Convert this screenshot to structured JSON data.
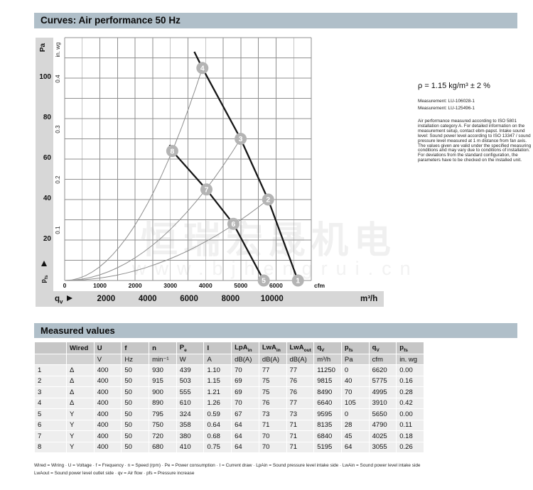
{
  "curves_section": {
    "title": "Curves: Air performance 50 Hz"
  },
  "side_panel": {
    "density": "ρ = 1.15 kg/m³ ± 2 %",
    "measurements": [
      "Measurement: LU-106028-1",
      "Measurement: LU-125496-1"
    ],
    "note": "Air performance measured according to ISO 5801 installation category A. For detailed information on the measurement setup, contact ebm-papst. Intake sound level: Sound power level according to ISO 13347 / sound pressure level measured at 1 m distance from fan axis. The values given are valid under the specified measuring conditions and may vary due to conditions of installation. For deviations from the standard configuration, the parameters have to be checked on the installed unit."
  },
  "watermark": {
    "line1": "恒瑞宏晟机电",
    "line2": "www.bjhengrui.cn"
  },
  "chart_data": {
    "type": "line",
    "title": "Air performance 50 Hz",
    "x_axis": {
      "unit_primary": "cfm",
      "ticks_cfm": [
        0,
        1000,
        2000,
        3000,
        4000,
        5000,
        6000
      ],
      "xlim_cfm": [
        0,
        7000
      ],
      "grid_step_cfm": 500,
      "unit_secondary": "m³/h",
      "ticks_m3h": [
        2000,
        4000,
        6000,
        8000,
        10000
      ],
      "cfm_per_m3h": 0.5886,
      "symbol": {
        "t": "q",
        "s": "v"
      }
    },
    "y_axis": {
      "unit_primary": "Pa",
      "ticks_pa": [
        100,
        80,
        60,
        40,
        20
      ],
      "ylim_pa": [
        0,
        120
      ],
      "grid_step_pa": 10,
      "unit_secondary": "in. wg",
      "ticks_inwg": [
        0.4,
        0.3,
        0.2,
        0.1
      ],
      "pa_per_inwg": 249,
      "symbol": {
        "t": "p",
        "s": "fs"
      }
    },
    "fan_curves": [
      {
        "name": "delta-wiring",
        "points": [
          [
            3680,
            113
          ],
          [
            3910,
            105
          ],
          [
            4995,
            70
          ],
          [
            5775,
            40
          ],
          [
            6620,
            0
          ]
        ]
      },
      {
        "name": "star-wiring",
        "points": [
          [
            2980,
            67
          ],
          [
            3055,
            64
          ],
          [
            4025,
            45
          ],
          [
            4790,
            28
          ],
          [
            5650,
            0
          ]
        ]
      }
    ],
    "system_curves": [
      {
        "end": [
          3910,
          105
        ]
      },
      {
        "end": [
          4995,
          70
        ]
      },
      {
        "end": [
          5775,
          40
        ]
      }
    ],
    "operating_points": [
      {
        "label": "1",
        "cfm": 6620,
        "pa": 0
      },
      {
        "label": "2",
        "cfm": 5775,
        "pa": 40
      },
      {
        "label": "3",
        "cfm": 4995,
        "pa": 70
      },
      {
        "label": "4",
        "cfm": 3910,
        "pa": 105
      },
      {
        "label": "5",
        "cfm": 5650,
        "pa": 0
      },
      {
        "label": "6",
        "cfm": 4790,
        "pa": 28
      },
      {
        "label": "7",
        "cfm": 4025,
        "pa": 45
      },
      {
        "label": "8",
        "cfm": 3055,
        "pa": 64
      }
    ]
  },
  "measured_values": {
    "title": "Measured values",
    "headers": [
      "",
      "Wired",
      "U",
      "f",
      "n",
      {
        "t": "P",
        "s": "e"
      },
      "I",
      {
        "t": "LpA",
        "s": "in"
      },
      {
        "t": "LwA",
        "s": "in"
      },
      {
        "t": "LwA",
        "s": "out"
      },
      {
        "t": "q",
        "s": "V"
      },
      {
        "t": "p",
        "s": "fs"
      },
      {
        "t": "q",
        "s": "V"
      },
      {
        "t": "p",
        "s": "fs"
      }
    ],
    "units": [
      "",
      "",
      "V",
      "Hz",
      "min⁻¹",
      "W",
      "A",
      "dB(A)",
      "dB(A)",
      "dB(A)",
      "m³/h",
      "Pa",
      "cfm",
      "in. wg"
    ],
    "rows": [
      [
        "1",
        "Δ",
        "400",
        "50",
        "930",
        "439",
        "1.10",
        "70",
        "77",
        "77",
        "11250",
        "0",
        "6620",
        "0.00"
      ],
      [
        "2",
        "Δ",
        "400",
        "50",
        "915",
        "503",
        "1.15",
        "69",
        "75",
        "76",
        "9815",
        "40",
        "5775",
        "0.16"
      ],
      [
        "3",
        "Δ",
        "400",
        "50",
        "900",
        "555",
        "1.21",
        "69",
        "75",
        "76",
        "8490",
        "70",
        "4995",
        "0.28"
      ],
      [
        "4",
        "Δ",
        "400",
        "50",
        "890",
        "610",
        "1.26",
        "70",
        "76",
        "77",
        "6640",
        "105",
        "3910",
        "0.42"
      ],
      [
        "5",
        "Y",
        "400",
        "50",
        "795",
        "324",
        "0.59",
        "67",
        "73",
        "73",
        "9595",
        "0",
        "5650",
        "0.00"
      ],
      [
        "6",
        "Y",
        "400",
        "50",
        "750",
        "358",
        "0.64",
        "64",
        "71",
        "71",
        "8135",
        "28",
        "4790",
        "0.11"
      ],
      [
        "7",
        "Y",
        "400",
        "50",
        "720",
        "380",
        "0.68",
        "64",
        "70",
        "71",
        "6840",
        "45",
        "4025",
        "0.18"
      ],
      [
        "8",
        "Y",
        "400",
        "50",
        "680",
        "410",
        "0.75",
        "64",
        "70",
        "71",
        "5195",
        "64",
        "3055",
        "0.26"
      ]
    ]
  },
  "footnote": {
    "line1": "Wired = Wiring · U = Voltage · f = Frequency · n = Speed (rpm) · Pe = Power consumption · I = Current draw · LpAin = Sound pressure level intake side · LwAin = Sound power level intake side",
    "line2": "LwAout = Sound power level outlet side · qv = Air flow · pfs = Pressure increase"
  },
  "colors": {
    "section_bar": "#b0bfc9",
    "axis_band": "#d7d7d7",
    "grid": "#8f8f8f",
    "fan_curve": "#161616",
    "system_curve": "#8e8e8e",
    "marker_fill": "#b4b4b4",
    "marker_text": "#ffffff",
    "header_cell": "#c6c6c6",
    "unit_cell": "#d2d2d2",
    "body_cell": "#eeeeee",
    "watermark": "#f0f0f0"
  }
}
